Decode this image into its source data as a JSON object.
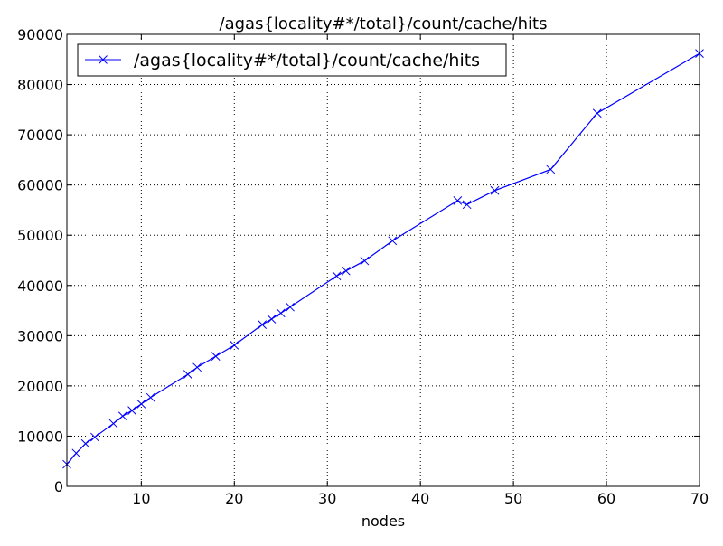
{
  "chart_data": {
    "type": "line",
    "title": "/agas{locality#*/total}/count/cache/hits",
    "xlabel": "nodes",
    "ylabel": "",
    "xlim": [
      2,
      70
    ],
    "ylim": [
      0,
      90000
    ],
    "x_ticks": [
      10,
      20,
      30,
      40,
      50,
      60,
      70
    ],
    "y_ticks": [
      0,
      10000,
      20000,
      30000,
      40000,
      50000,
      60000,
      70000,
      80000,
      90000
    ],
    "grid": true,
    "legend_position": "top-left",
    "series": [
      {
        "name": "/agas{locality#*/total}/count/cache/hits",
        "color": "#0000ff",
        "marker": "x",
        "x": [
          2,
          3,
          4,
          5,
          7,
          8,
          9,
          10,
          11,
          15,
          16,
          18,
          20,
          23,
          24,
          25,
          26,
          31,
          32,
          34,
          37,
          44,
          45,
          48,
          54,
          59,
          70
        ],
        "y": [
          4400,
          6600,
          8500,
          9800,
          12500,
          14000,
          15100,
          16400,
          17700,
          22300,
          23700,
          25900,
          28100,
          32200,
          33300,
          34500,
          35700,
          41900,
          42900,
          44900,
          48900,
          56900,
          56100,
          58900,
          63100,
          74300,
          86200
        ]
      }
    ]
  }
}
